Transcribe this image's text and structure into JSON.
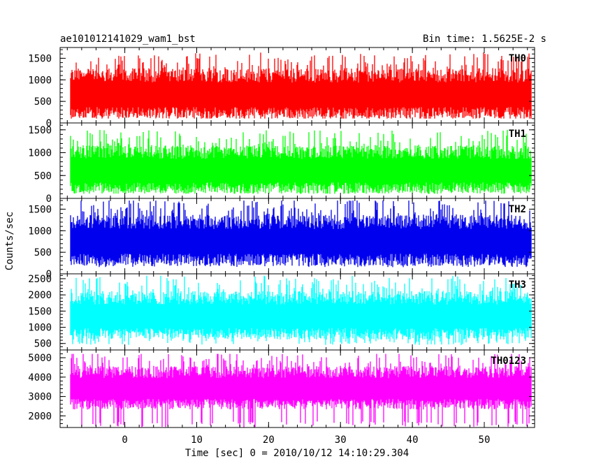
{
  "header": {
    "title": "ae101012141029_wam1_bst",
    "bin_time": "Bin time: 1.5625E-2 s"
  },
  "chart_data": {
    "type": "line",
    "xlabel": "Time [sec] 0 = 2010/10/12 14:10:29.304",
    "ylabel": "Counts/sec",
    "x_range": [
      -7.5,
      56.5
    ],
    "xlim": [
      -9,
      57
    ],
    "x_ticks": [
      0,
      10,
      20,
      30,
      40,
      50
    ],
    "bin_time_s": 0.015625,
    "series": [
      {
        "name": "TH0",
        "color": "#ff0000",
        "ylim": [
          0,
          1750
        ],
        "y_ticks": [
          0,
          500,
          1000,
          1500
        ],
        "baseline": 700,
        "spread": 950,
        "low": 100,
        "high": 1650
      },
      {
        "name": "TH1",
        "color": "#00ff00",
        "ylim": [
          0,
          1650
        ],
        "y_ticks": [
          0,
          500,
          1000,
          1500
        ],
        "baseline": 650,
        "spread": 850,
        "low": 100,
        "high": 1600
      },
      {
        "name": "TH2",
        "color": "#0000ee",
        "ylim": [
          0,
          1750
        ],
        "y_ticks": [
          0,
          500,
          1000,
          1500
        ],
        "baseline": 800,
        "spread": 950,
        "low": 150,
        "high": 1700
      },
      {
        "name": "TH3",
        "color": "#00ffff",
        "ylim": [
          300,
          2650
        ],
        "y_ticks": [
          500,
          1000,
          1500,
          2000,
          2500
        ],
        "baseline": 1400,
        "spread": 1200,
        "low": 450,
        "high": 2650
      },
      {
        "name": "TH0123",
        "color": "#ff00ff",
        "ylim": [
          1400,
          5400
        ],
        "y_ticks": [
          2000,
          3000,
          4000,
          5000
        ],
        "baseline": 3500,
        "spread": 1800,
        "low": 1400,
        "high": 5200
      }
    ]
  }
}
